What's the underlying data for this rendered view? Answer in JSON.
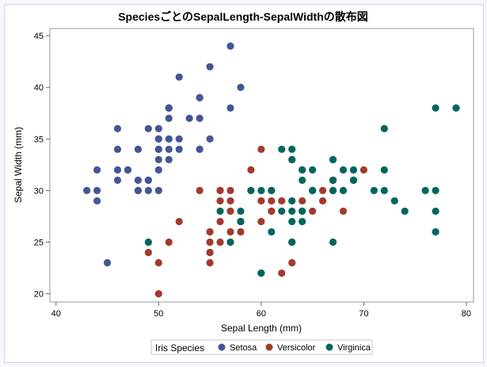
{
  "chart_data": {
    "type": "scatter",
    "title": "SpeciesごとのSepalLength-SepalWidthの散布図",
    "xlabel": "Sepal Length (mm)",
    "ylabel": "Sepal Width (mm)",
    "xlim": [
      39.4,
      80.7
    ],
    "ylim": [
      19.2,
      45.7
    ],
    "xticks": [
      40,
      50,
      60,
      70,
      80
    ],
    "yticks": [
      20,
      25,
      30,
      35,
      40,
      45
    ],
    "grid": false,
    "legend": {
      "title": "Iris Species",
      "placement": "bottom"
    },
    "series": [
      {
        "name": "Setosa",
        "color": "#445694",
        "points": [
          [
            51,
            35
          ],
          [
            49,
            30
          ],
          [
            47,
            32
          ],
          [
            46,
            31
          ],
          [
            50,
            36
          ],
          [
            54,
            39
          ],
          [
            46,
            34
          ],
          [
            50,
            34
          ],
          [
            44,
            29
          ],
          [
            49,
            31
          ],
          [
            54,
            37
          ],
          [
            48,
            34
          ],
          [
            48,
            30
          ],
          [
            43,
            30
          ],
          [
            58,
            40
          ],
          [
            57,
            44
          ],
          [
            54,
            39
          ],
          [
            51,
            35
          ],
          [
            57,
            38
          ],
          [
            51,
            38
          ],
          [
            54,
            34
          ],
          [
            51,
            37
          ],
          [
            46,
            36
          ],
          [
            51,
            33
          ],
          [
            48,
            34
          ],
          [
            50,
            30
          ],
          [
            50,
            34
          ],
          [
            52,
            35
          ],
          [
            52,
            34
          ],
          [
            47,
            32
          ],
          [
            48,
            31
          ],
          [
            54,
            34
          ],
          [
            52,
            41
          ],
          [
            55,
            42
          ],
          [
            49,
            31
          ],
          [
            50,
            32
          ],
          [
            55,
            35
          ],
          [
            49,
            36
          ],
          [
            44,
            30
          ],
          [
            51,
            34
          ],
          [
            50,
            35
          ],
          [
            45,
            23
          ],
          [
            44,
            32
          ],
          [
            50,
            35
          ],
          [
            51,
            38
          ],
          [
            48,
            30
          ],
          [
            51,
            38
          ],
          [
            46,
            32
          ],
          [
            53,
            37
          ],
          [
            50,
            33
          ]
        ]
      },
      {
        "name": "Versicolor",
        "color": "#A23A2E",
        "points": [
          [
            70,
            32
          ],
          [
            64,
            32
          ],
          [
            69,
            31
          ],
          [
            55,
            23
          ],
          [
            65,
            28
          ],
          [
            57,
            28
          ],
          [
            63,
            33
          ],
          [
            49,
            24
          ],
          [
            66,
            29
          ],
          [
            52,
            27
          ],
          [
            50,
            20
          ],
          [
            59,
            30
          ],
          [
            60,
            22
          ],
          [
            61,
            29
          ],
          [
            56,
            29
          ],
          [
            67,
            31
          ],
          [
            56,
            30
          ],
          [
            58,
            27
          ],
          [
            62,
            22
          ],
          [
            56,
            25
          ],
          [
            59,
            32
          ],
          [
            61,
            28
          ],
          [
            63,
            25
          ],
          [
            61,
            28
          ],
          [
            64,
            29
          ],
          [
            66,
            30
          ],
          [
            68,
            28
          ],
          [
            67,
            30
          ],
          [
            60,
            29
          ],
          [
            57,
            26
          ],
          [
            55,
            24
          ],
          [
            55,
            24
          ],
          [
            58,
            27
          ],
          [
            60,
            27
          ],
          [
            54,
            30
          ],
          [
            60,
            34
          ],
          [
            67,
            31
          ],
          [
            63,
            23
          ],
          [
            56,
            30
          ],
          [
            55,
            25
          ],
          [
            55,
            26
          ],
          [
            61,
            30
          ],
          [
            58,
            26
          ],
          [
            50,
            23
          ],
          [
            56,
            27
          ],
          [
            57,
            30
          ],
          [
            57,
            29
          ],
          [
            62,
            29
          ],
          [
            51,
            25
          ],
          [
            57,
            28
          ]
        ]
      },
      {
        "name": "Virginica",
        "color": "#01665E",
        "points": [
          [
            63,
            33
          ],
          [
            58,
            27
          ],
          [
            71,
            30
          ],
          [
            63,
            29
          ],
          [
            65,
            30
          ],
          [
            76,
            30
          ],
          [
            49,
            25
          ],
          [
            73,
            29
          ],
          [
            67,
            25
          ],
          [
            72,
            36
          ],
          [
            65,
            32
          ],
          [
            64,
            27
          ],
          [
            68,
            30
          ],
          [
            57,
            25
          ],
          [
            58,
            28
          ],
          [
            64,
            32
          ],
          [
            65,
            30
          ],
          [
            77,
            38
          ],
          [
            77,
            26
          ],
          [
            60,
            22
          ],
          [
            69,
            32
          ],
          [
            56,
            28
          ],
          [
            77,
            28
          ],
          [
            63,
            27
          ],
          [
            67,
            33
          ],
          [
            72,
            32
          ],
          [
            62,
            28
          ],
          [
            61,
            30
          ],
          [
            64,
            28
          ],
          [
            72,
            30
          ],
          [
            74,
            28
          ],
          [
            79,
            38
          ],
          [
            64,
            28
          ],
          [
            63,
            28
          ],
          [
            61,
            26
          ],
          [
            77,
            30
          ],
          [
            63,
            34
          ],
          [
            64,
            31
          ],
          [
            60,
            30
          ],
          [
            69,
            31
          ],
          [
            67,
            31
          ],
          [
            69,
            31
          ],
          [
            58,
            27
          ],
          [
            68,
            32
          ],
          [
            67,
            33
          ],
          [
            67,
            30
          ],
          [
            63,
            25
          ],
          [
            65,
            30
          ],
          [
            62,
            34
          ],
          [
            59,
            30
          ]
        ]
      }
    ]
  }
}
